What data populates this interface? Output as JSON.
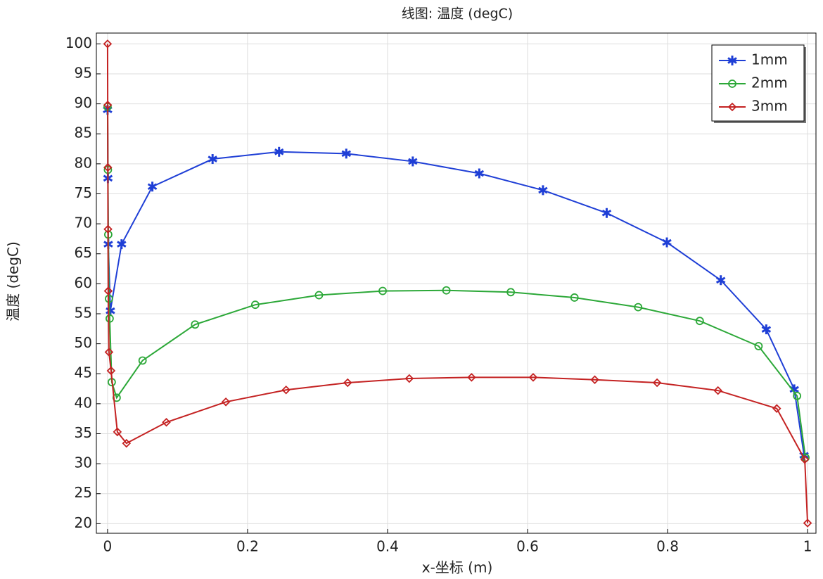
{
  "chart_data": {
    "type": "line",
    "title": "线图: 温度 (degC)",
    "xlabel": "x-坐标 (m)",
    "ylabel": "温度 (degC)",
    "xlim": [
      -0.016,
      1.012
    ],
    "ylim": [
      18.4,
      101.8
    ],
    "xticks": [
      0,
      0.2,
      0.4,
      0.6,
      0.8,
      1
    ],
    "yticks": [
      20,
      25,
      30,
      35,
      40,
      45,
      50,
      55,
      60,
      65,
      70,
      75,
      80,
      85,
      90,
      95,
      100
    ],
    "grid": true,
    "legend": "upper right",
    "series": [
      {
        "name": "1mm",
        "color": "#1f3fd6",
        "marker": "asterisk",
        "x": [
          0,
          0.0005,
          0.001,
          0.004,
          0.02,
          0.064,
          0.15,
          0.245,
          0.341,
          0.436,
          0.531,
          0.622,
          0.713,
          0.799,
          0.876,
          0.941,
          0.981,
          0.995
        ],
        "values": [
          89,
          77.6,
          66.6,
          55.5,
          66.6,
          76.2,
          80.8,
          82.0,
          81.7,
          80.4,
          78.4,
          75.6,
          71.8,
          66.9,
          60.6,
          52.4,
          42.4,
          31.4
        ]
      },
      {
        "name": "2mm",
        "color": "#2ca838",
        "marker": "circle",
        "x": [
          0,
          0.0005,
          0.001,
          0.002,
          0.003,
          0.006,
          0.013,
          0.05,
          0.125,
          0.211,
          0.302,
          0.393,
          0.484,
          0.576,
          0.667,
          0.758,
          0.846,
          0.93,
          0.985,
          0.997
        ],
        "values": [
          89.5,
          79,
          68.2,
          57.5,
          54.2,
          43.6,
          41.0,
          47.2,
          53.2,
          56.5,
          58.1,
          58.8,
          58.9,
          58.6,
          57.7,
          56.1,
          53.8,
          49.6,
          41.3,
          31.0
        ]
      },
      {
        "name": "3mm",
        "color": "#c42222",
        "marker": "diamond",
        "x": [
          0,
          0.0002,
          0.0004,
          0.0006,
          0.001,
          0.002,
          0.005,
          0.014,
          0.027,
          0.084,
          0.169,
          0.255,
          0.343,
          0.431,
          0.52,
          0.608,
          0.696,
          0.785,
          0.872,
          0.956,
          0.996,
          1.0
        ],
        "values": [
          100,
          89.8,
          79.4,
          69.1,
          58.8,
          48.6,
          45.5,
          35.3,
          33.4,
          36.9,
          40.3,
          42.3,
          43.5,
          44.2,
          44.4,
          44.4,
          44.0,
          43.5,
          42.2,
          39.2,
          30.7,
          20.1
        ]
      }
    ]
  }
}
